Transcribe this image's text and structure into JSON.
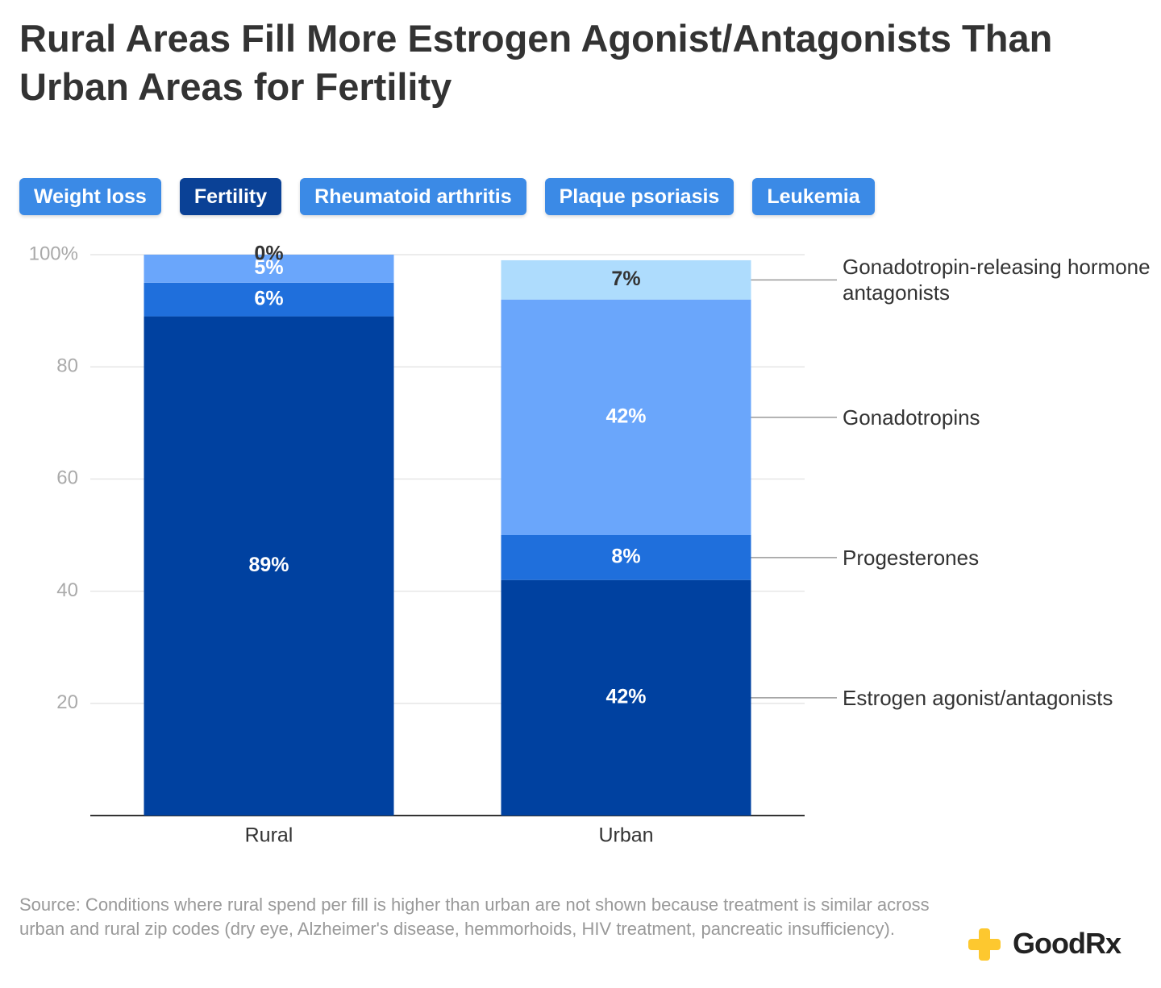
{
  "header": {
    "title": "Rural Areas Fill More Estrogen Agonist/Antagonists Than Urban Areas for Fertility"
  },
  "tabs": [
    "Weight loss",
    "Fertility",
    "Rheumatoid arthritis",
    "Plaque psoriasis",
    "Leukemia"
  ],
  "active_tab": 1,
  "chart_data": {
    "type": "stacked_bar",
    "categories": [
      "Rural",
      "Urban"
    ],
    "series": [
      {
        "name": "Estrogen agonist/antagonists",
        "color": "#0041a0",
        "label_color": "#ffffff",
        "values": [
          89,
          42
        ],
        "value_labels": [
          "89%",
          "42%"
        ]
      },
      {
        "name": "Progesterones",
        "color": "#1f6fdc",
        "label_color": "#ffffff",
        "values": [
          6,
          8
        ],
        "value_labels": [
          "6%",
          "8%"
        ]
      },
      {
        "name": "Gonadotropins",
        "color": "#6aa6fb",
        "label_color": "#ffffff",
        "values": [
          5,
          42
        ],
        "value_labels": [
          "5%",
          "42%"
        ]
      },
      {
        "name": "Gonadotropin-releasing hormone antagonists",
        "color": "#aedcfd",
        "label_color": "#333333",
        "values": [
          0,
          7
        ],
        "value_labels": [
          "0%",
          "7%"
        ]
      }
    ],
    "ylim": [
      0,
      100
    ],
    "yticks": [
      20,
      40,
      60,
      80,
      {
        "value": 100,
        "label": "100%"
      }
    ],
    "grid": true
  },
  "footer": {
    "source": "Source: Conditions where rural spend per fill is higher than urban are not shown because treatment is similar across urban and rural zip codes (dry eye, Alzheimer's disease, hemmorhoids, HIV treatment, pancreatic insufficiency).",
    "logo": "GoodRx"
  }
}
